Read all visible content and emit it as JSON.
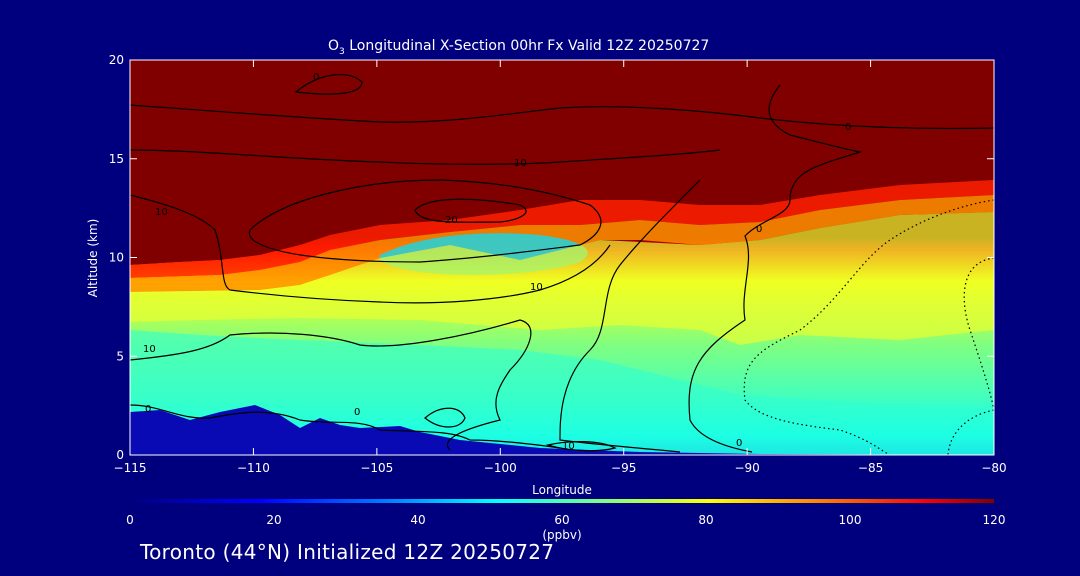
{
  "chart_data": {
    "type": "heatmap",
    "title_prefix": "O",
    "title_sub": "3",
    "title_rest": " Longitudinal X-Section 00hr  Fx Valid 12Z 20250727",
    "xlabel": "Longitude",
    "ylabel": "Altitude (km)",
    "xlim": [
      -115,
      -80
    ],
    "ylim": [
      0,
      20
    ],
    "x_ticks": [
      "-115",
      "-110",
      "-105",
      "-100",
      "-95",
      "-90",
      "-85",
      "-80"
    ],
    "y_ticks": [
      "0",
      "5",
      "10",
      "15",
      "20"
    ],
    "colorbar": {
      "range": [
        0,
        120
      ],
      "unit": "(ppbv)",
      "ticks": [
        "0",
        "20",
        "40",
        "60",
        "80",
        "100",
        "120"
      ],
      "colors": [
        "#00007f",
        "#0000ff",
        "#0080ff",
        "#00ffff",
        "#80ff80",
        "#ffff00",
        "#ff8000",
        "#ff0000",
        "#800000"
      ]
    },
    "contour_labels": [
      "0",
      "10",
      "20",
      "10",
      "10",
      "10",
      "0",
      "0",
      "0",
      "0",
      "10",
      "0"
    ],
    "grid": false
  },
  "footer": "Toronto (44°N) Initialized 12Z 20250727"
}
